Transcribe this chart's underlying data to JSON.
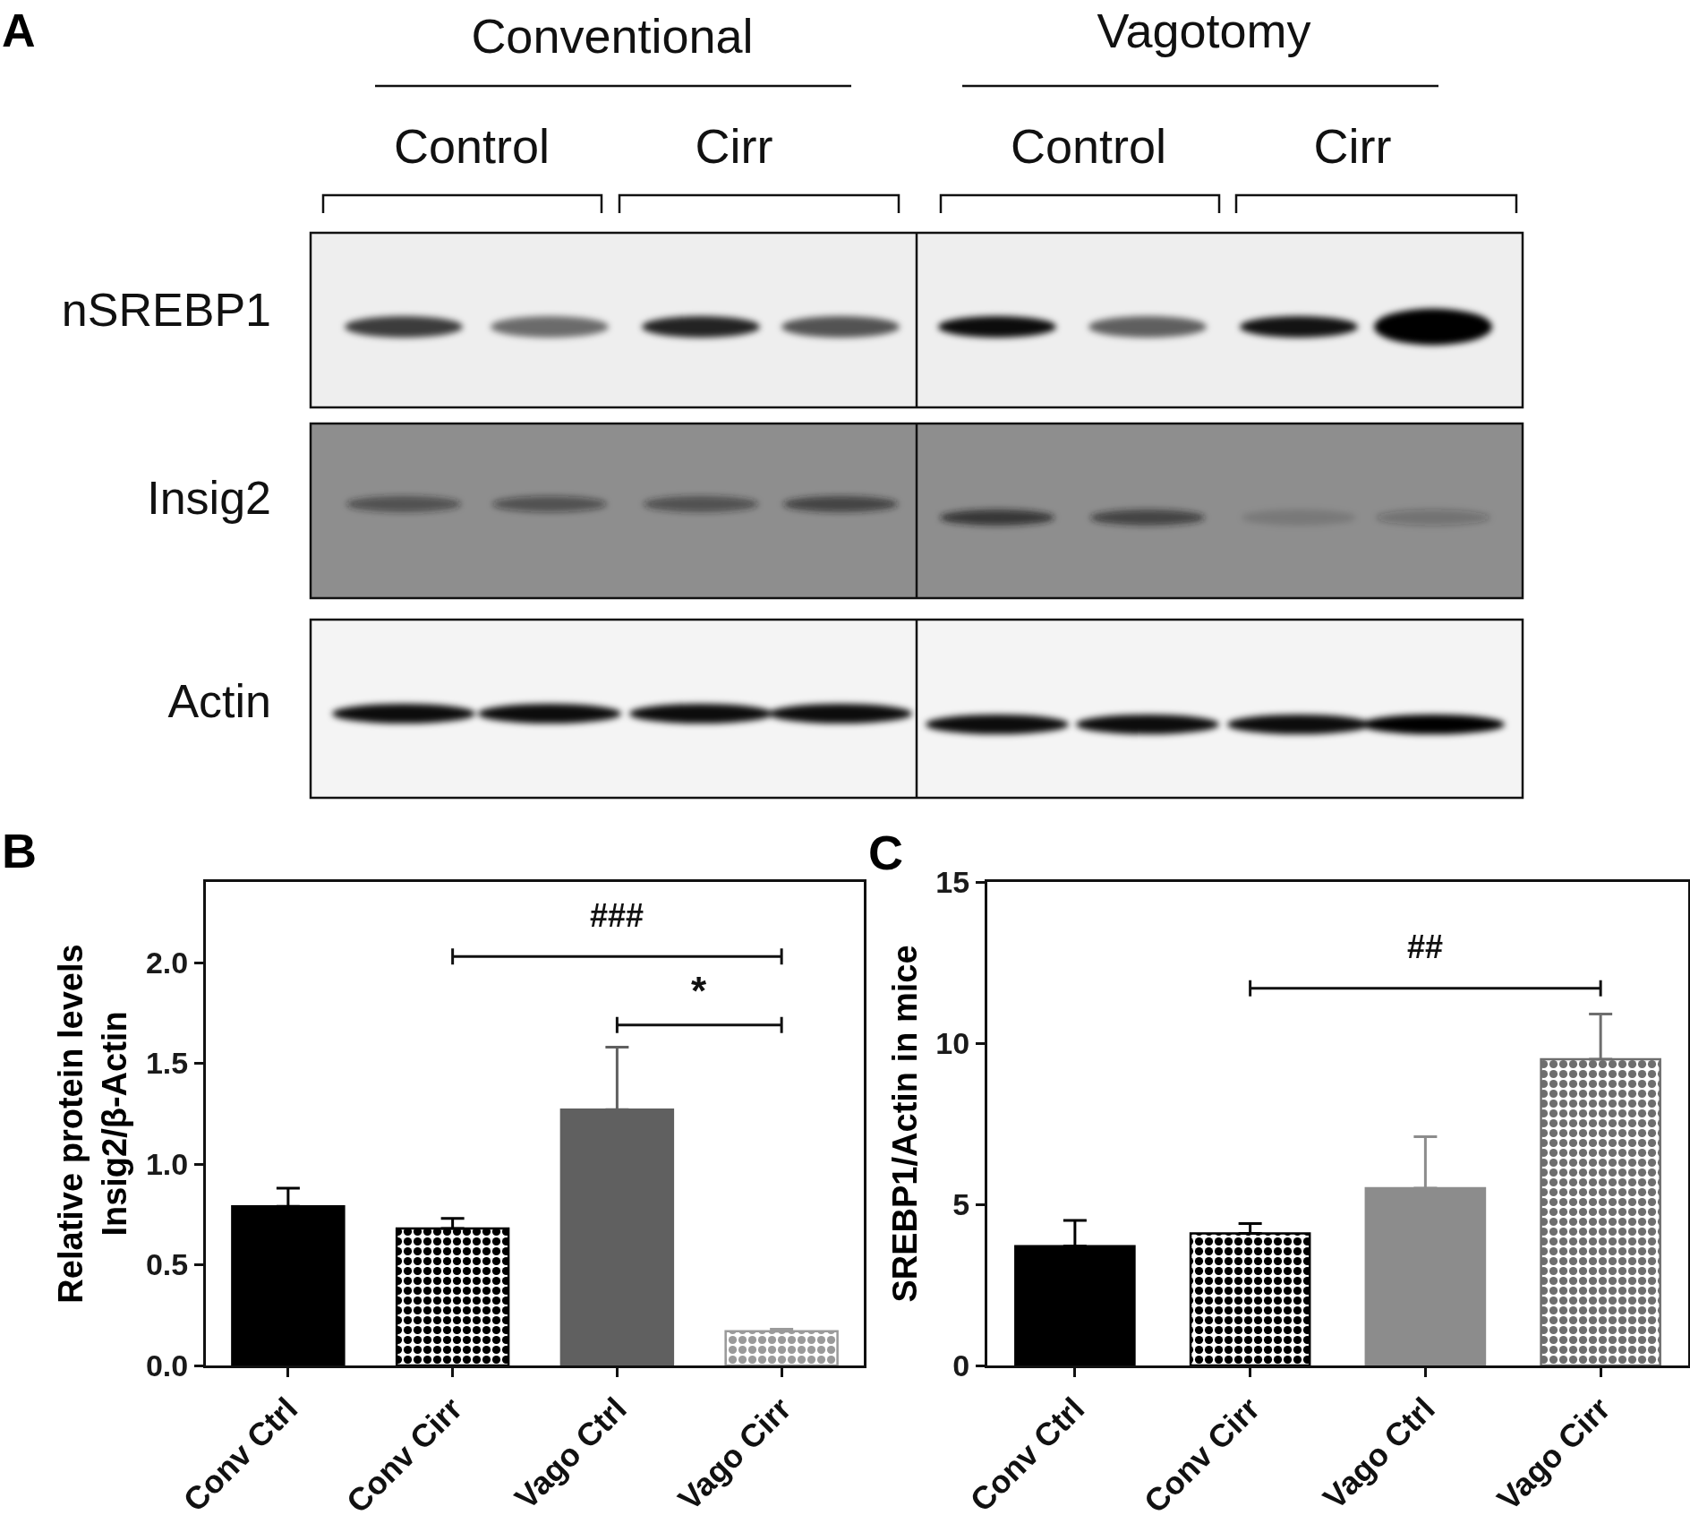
{
  "chart_data": [
    {
      "type": "other",
      "title": "A",
      "annotations": [
        "Conventional",
        "Vagotomy",
        "Control",
        "Cirr",
        "Control",
        "Cirr",
        "nSREBP1",
        "Insig2",
        "Actin"
      ]
    },
    {
      "type": "bar",
      "title": "B",
      "ylabel": "Relative protein levels\nInsig2/β-Actin",
      "categories": [
        "Conv Ctrl",
        "Conv Cirr",
        "Vago Ctrl",
        "Vago Cirr"
      ],
      "values": [
        0.79,
        0.68,
        1.27,
        0.17
      ],
      "colors": [
        "#000000",
        "#000000",
        "#606060",
        "#9a9a9a"
      ],
      "errors": [
        [
          0.79,
          0.88
        ],
        [
          0.68,
          0.73
        ],
        [
          1.27,
          1.58
        ],
        [
          0.17,
          0.18
        ]
      ],
      "ylim": [
        0,
        2.4
      ],
      "yticks": [
        {
          "value": 0,
          "label": "0.0"
        },
        0.5,
        {
          "value": 1,
          "label": "1.0"
        },
        1.5,
        {
          "value": 2,
          "label": "2.0"
        }
      ],
      "annotations": [
        "###",
        "*"
      ]
    },
    {
      "type": "bar",
      "title": "C",
      "ylabel": "SREBP1/Actin in mice",
      "categories": [
        "Conv Ctrl",
        "Conv Cirr",
        "Vago Ctrl",
        "Vago Cirr"
      ],
      "values": [
        3.7,
        4.1,
        5.5,
        9.5
      ],
      "colors": [
        "#000000",
        "#000000",
        "#8c8c8c",
        "#6e6e6e"
      ],
      "errors": [
        [
          3.7,
          4.5
        ],
        [
          4.1,
          4.4
        ],
        [
          5.5,
          7.1
        ],
        [
          9.5,
          10.9
        ]
      ],
      "ylim": [
        0,
        15
      ],
      "yticks": [
        0,
        5,
        10,
        15
      ],
      "annotations": [
        "##"
      ]
    }
  ]
}
